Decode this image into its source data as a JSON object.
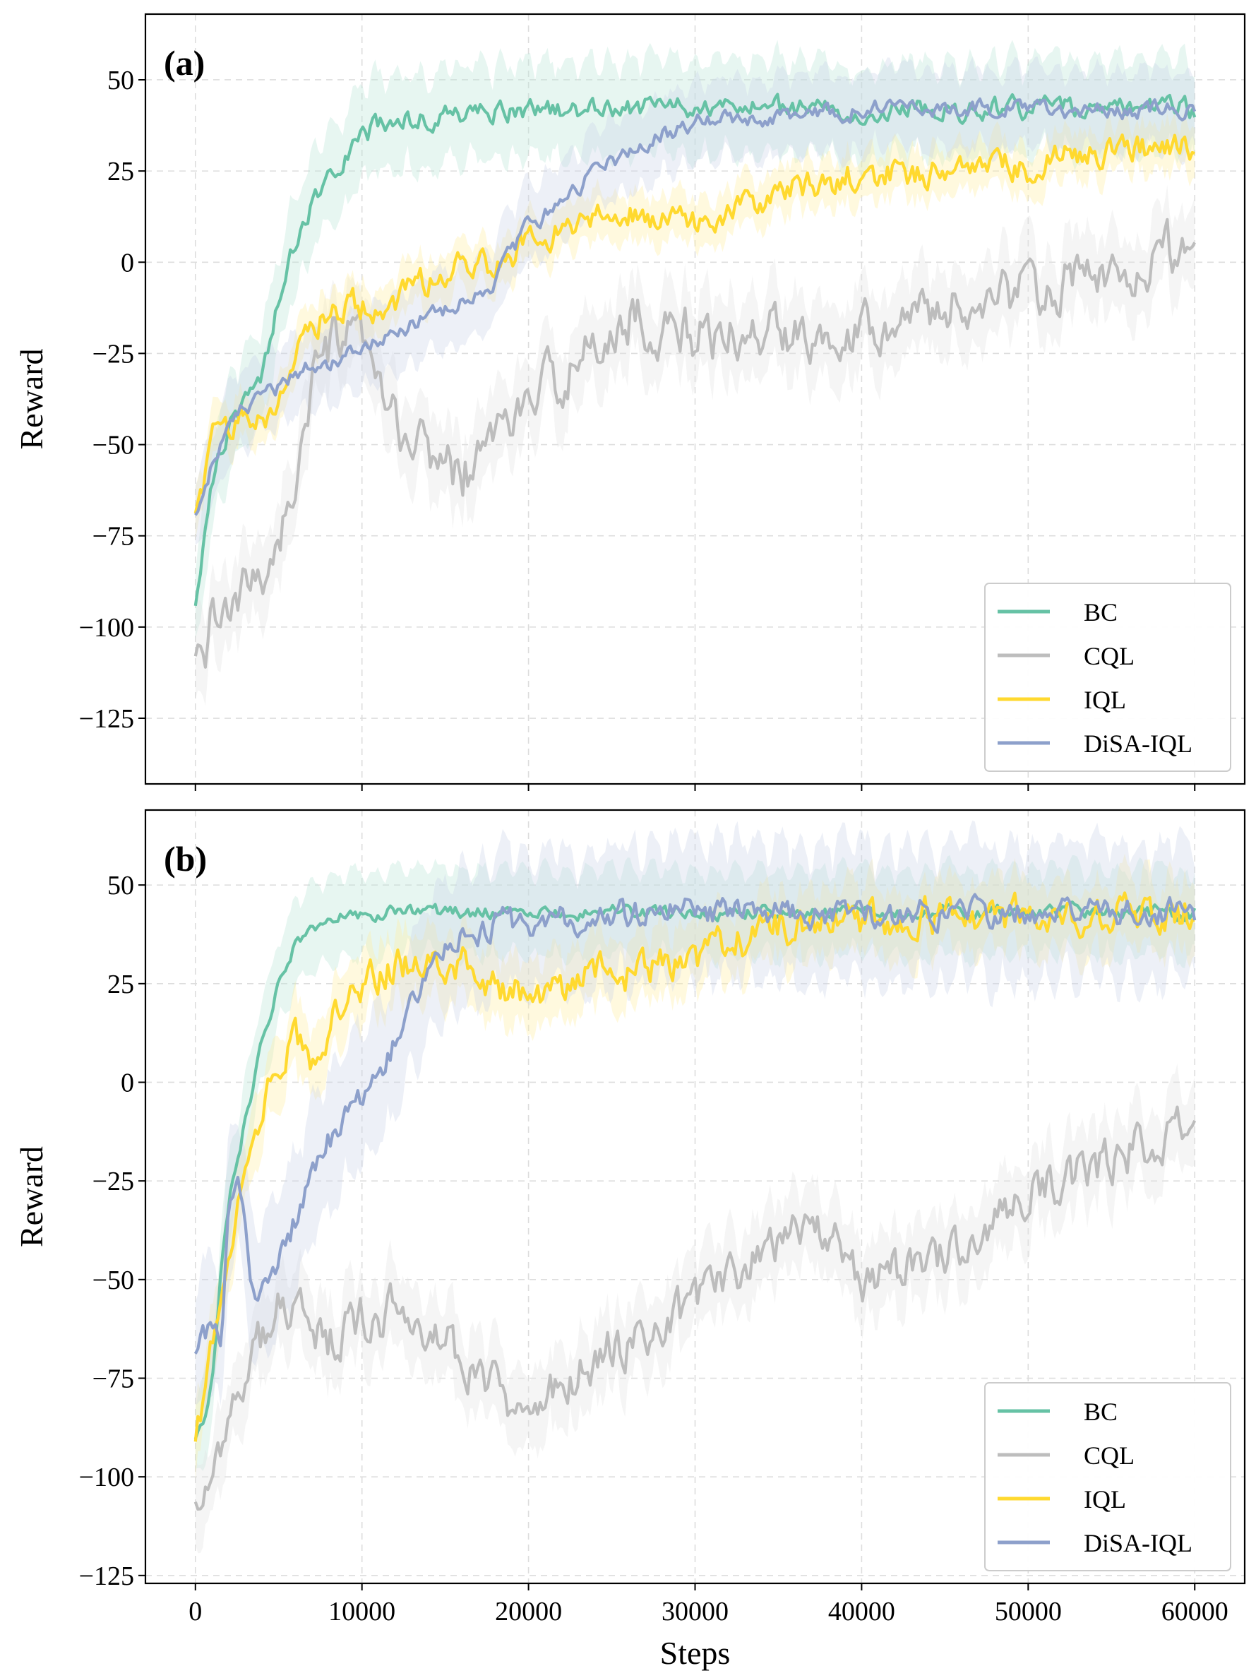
{
  "figure": {
    "xlabel": "Steps"
  },
  "chart_data": [
    {
      "type": "line",
      "panel_label": "(a)",
      "xlabel": "",
      "ylabel": "Reward",
      "xlim": [
        -3000,
        63000
      ],
      "ylim": [
        -143,
        68
      ],
      "xticks": [
        0,
        10000,
        20000,
        30000,
        40000,
        50000,
        60000
      ],
      "xtick_labels": [
        "0",
        "10000",
        "20000",
        "30000",
        "40000",
        "50000",
        "60000"
      ],
      "yticks": [
        50,
        25,
        0,
        -25,
        -50,
        -75,
        -100,
        -125
      ],
      "ytick_labels": [
        "50",
        "25",
        "0",
        "−25",
        "−50",
        "−75",
        "−100",
        "−125"
      ],
      "grid": true,
      "legend_position": "lower-right",
      "series": [
        {
          "name": "BC",
          "color": "#66c2a5",
          "band": 12,
          "noise": 2.5,
          "x": [
            0,
            500,
            1000,
            2000,
            3000,
            4000,
            5000,
            6000,
            7000,
            8000,
            9000,
            10000,
            12000,
            14000,
            16000,
            20000,
            25000,
            30000,
            40000,
            50000,
            60000
          ],
          "values": [
            -95,
            -75,
            -60,
            -45,
            -38,
            -30,
            -10,
            5,
            15,
            25,
            30,
            35,
            39,
            40,
            41,
            42,
            42,
            42,
            42,
            42,
            42
          ]
        },
        {
          "name": "CQL",
          "color": "#bdbdbd",
          "band": 10,
          "noise": 6,
          "x": [
            0,
            500,
            1000,
            2000,
            3000,
            4000,
            5000,
            6000,
            7000,
            8000,
            9000,
            10000,
            11000,
            12000,
            13000,
            14000,
            15000,
            16000,
            17000,
            18000,
            20000,
            22000,
            24000,
            26000,
            28000,
            30000,
            34000,
            38000,
            42000,
            46000,
            50000,
            54000,
            56000,
            58000,
            60000
          ],
          "values": [
            -110,
            -115,
            -95,
            -100,
            -90,
            -85,
            -75,
            -60,
            -35,
            -25,
            -20,
            -25,
            -35,
            -45,
            -50,
            -52,
            -55,
            -58,
            -55,
            -45,
            -40,
            -30,
            -25,
            -15,
            -18,
            -20,
            -20,
            -18,
            -15,
            -12,
            -8,
            -5,
            -5,
            5,
            0
          ]
        },
        {
          "name": "IQL",
          "color": "#ffd92f",
          "band": 6,
          "noise": 3.5,
          "x": [
            0,
            500,
            1000,
            2000,
            3000,
            4000,
            5000,
            6000,
            7000,
            8000,
            9000,
            10000,
            11000,
            12000,
            13000,
            14000,
            16000,
            18000,
            20000,
            22000,
            24000,
            26000,
            28000,
            30000,
            34000,
            36000,
            38000,
            40000,
            42000,
            44000,
            46000,
            48000,
            50000,
            52000,
            54000,
            56000,
            58000,
            60000
          ],
          "values": [
            -70,
            -60,
            -50,
            -45,
            -40,
            -42,
            -40,
            -25,
            -15,
            -15,
            -12,
            -12,
            -15,
            -12,
            -8,
            -5,
            -2,
            0,
            5,
            10,
            12,
            14,
            13,
            12,
            15,
            20,
            22,
            25,
            24,
            25,
            26,
            27,
            26,
            28,
            30,
            32,
            31,
            30
          ]
        },
        {
          "name": "DiSA-IQL",
          "color": "#8da0cb",
          "band": 10,
          "noise": 2,
          "x": [
            0,
            500,
            1000,
            2000,
            3000,
            4000,
            5000,
            6000,
            7000,
            8000,
            9000,
            10000,
            12000,
            14000,
            16000,
            18000,
            20000,
            22000,
            24000,
            26000,
            28000,
            30000,
            32000,
            34000,
            36000,
            38000,
            40000,
            44000,
            48000,
            52000,
            56000,
            60000
          ],
          "values": [
            -70,
            -62,
            -55,
            -45,
            -40,
            -38,
            -35,
            -30,
            -28,
            -27,
            -25,
            -22,
            -20,
            -15,
            -10,
            -5,
            10,
            17,
            25,
            30,
            35,
            38,
            39,
            40,
            41,
            41,
            42,
            42,
            42,
            42,
            42,
            42
          ]
        }
      ]
    },
    {
      "type": "line",
      "panel_label": "(b)",
      "xlabel": "Steps",
      "ylabel": "Reward",
      "xlim": [
        -3000,
        63000
      ],
      "ylim": [
        -127,
        69
      ],
      "xticks": [
        0,
        10000,
        20000,
        30000,
        40000,
        50000,
        60000
      ],
      "xtick_labels": [
        "0",
        "10000",
        "20000",
        "30000",
        "40000",
        "50000",
        "60000"
      ],
      "yticks": [
        50,
        25,
        0,
        -25,
        -50,
        -75,
        -100,
        -125
      ],
      "ytick_labels": [
        "50",
        "25",
        "0",
        "−25",
        "−50",
        "−75",
        "−100",
        "−125"
      ],
      "grid": true,
      "legend_position": "lower-right",
      "series": [
        {
          "name": "BC",
          "color": "#66c2a5",
          "band": 10,
          "noise": 1.5,
          "x": [
            0,
            500,
            1000,
            1500,
            2000,
            2500,
            3000,
            4000,
            5000,
            6000,
            7000,
            8000,
            10000,
            12000,
            14000,
            20000,
            30000,
            40000,
            50000,
            60000
          ],
          "values": [
            -90,
            -85,
            -75,
            -50,
            -30,
            -20,
            -10,
            10,
            25,
            35,
            40,
            42,
            42,
            43,
            43,
            43,
            43,
            43,
            43,
            43
          ]
        },
        {
          "name": "CQL",
          "color": "#bdbdbd",
          "band": 9,
          "noise": 5,
          "x": [
            0,
            1000,
            2000,
            3000,
            4000,
            5000,
            6000,
            8000,
            10000,
            12000,
            14000,
            16000,
            18000,
            19000,
            20000,
            22000,
            24000,
            26000,
            28000,
            30000,
            32000,
            34000,
            36000,
            38000,
            40000,
            42000,
            44000,
            46000,
            48000,
            50000,
            52000,
            54000,
            56000,
            58000,
            60000
          ],
          "values": [
            -105,
            -103,
            -85,
            -75,
            -65,
            -58,
            -60,
            -65,
            -60,
            -58,
            -62,
            -70,
            -75,
            -82,
            -78,
            -75,
            -70,
            -65,
            -60,
            -58,
            -52,
            -45,
            -35,
            -40,
            -50,
            -48,
            -45,
            -40,
            -35,
            -28,
            -25,
            -22,
            -18,
            -15,
            -12
          ]
        },
        {
          "name": "IQL",
          "color": "#ffd92f",
          "band": 8,
          "noise": 4,
          "x": [
            0,
            500,
            1000,
            2000,
            3000,
            4000,
            5000,
            6000,
            7000,
            8000,
            9000,
            10000,
            12000,
            14000,
            16000,
            18000,
            20000,
            22000,
            24000,
            26000,
            28000,
            30000,
            32000,
            34000,
            36000,
            40000,
            44000,
            50000,
            55000,
            60000
          ],
          "values": [
            -90,
            -80,
            -65,
            -40,
            -20,
            -5,
            5,
            10,
            5,
            15,
            20,
            25,
            30,
            28,
            30,
            25,
            22,
            25,
            30,
            28,
            30,
            32,
            35,
            38,
            40,
            41,
            42,
            42,
            42,
            43
          ]
        },
        {
          "name": "DiSA-IQL",
          "color": "#8da0cb",
          "band": 16,
          "noise": 3,
          "x": [
            0,
            500,
            1000,
            1500,
            2000,
            2500,
            3000,
            3500,
            4000,
            5000,
            6000,
            7000,
            8000,
            9000,
            10000,
            11000,
            12000,
            13000,
            14000,
            15000,
            16000,
            18000,
            20000,
            22000,
            24000,
            26000,
            30000,
            40000,
            50000,
            60000
          ],
          "values": [
            -68,
            -65,
            -63,
            -68,
            -35,
            -25,
            -35,
            -55,
            -50,
            -45,
            -35,
            -25,
            -15,
            -10,
            -5,
            0,
            10,
            20,
            30,
            35,
            38,
            40,
            40,
            41,
            42,
            43,
            43,
            43,
            43,
            43
          ]
        }
      ]
    }
  ]
}
